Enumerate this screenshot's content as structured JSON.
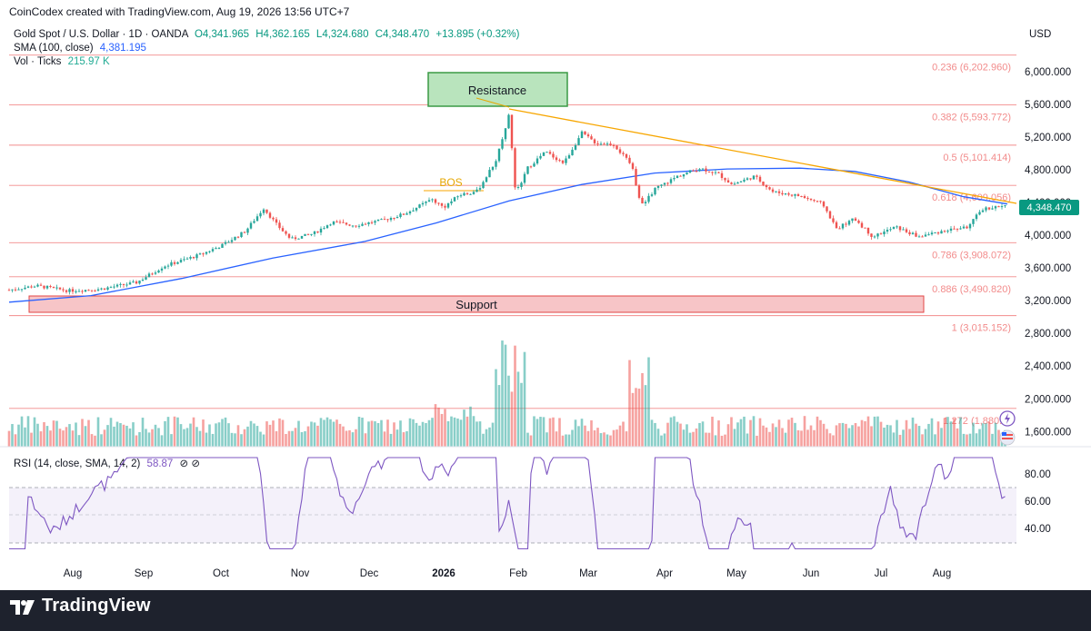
{
  "credit": "CoinCodex created with TradingView.com, Aug 19, 2026 13:56 UTC+7",
  "legend": {
    "symbol": "Gold Spot / U.S. Dollar · 1D · OANDA",
    "open": "O4,341.965",
    "high": "H4,362.165",
    "low": "L4,324.680",
    "close": "C4,348.470",
    "change": "+13.895 (+0.32%)",
    "sma_label": "SMA (100, close)",
    "sma_value": "4,381.195",
    "vol_label": "Vol · Ticks",
    "vol_value": "215.97 K",
    "rsi_label": "RSI (14, close, SMA, 14, 2)",
    "rsi_value": "58.87",
    "rsi_extra": "⊘ ⊘"
  },
  "currency": "USD",
  "brand": "TradingView",
  "colors": {
    "up": "#26a69a",
    "down": "#ef5350",
    "sma": "#2962ff",
    "trendline": "#f7a600",
    "fib": "#f28b8b",
    "rsi": "#7e57c2"
  },
  "chart_data": {
    "type": "candlestick",
    "price_axis": {
      "ticks": [
        "6,000.000",
        "5,600.000",
        "5,200.000",
        "4,800.000",
        "4,400.000",
        "4,000.000",
        "3,600.000",
        "3,200.000",
        "2,800.000",
        "2,400.000",
        "2,000.000",
        "1,600.000"
      ],
      "range": [
        1390,
        6460
      ]
    },
    "last_price_label": "4,348.470",
    "x_axis_labels": [
      "Aug",
      "Sep",
      "Oct",
      "Nov",
      "Dec",
      "2026",
      "Feb",
      "Mar",
      "Apr",
      "May",
      "Jun",
      "Jul",
      "Aug"
    ],
    "annotations": {
      "resistance": "Resistance",
      "support": "Support",
      "bos": "BOS"
    },
    "fib_levels": [
      {
        "label": "0.236 (6,202.960)",
        "price": 6202.96
      },
      {
        "label": "0.382 (5,593.772)",
        "price": 5593.772
      },
      {
        "label": "0.5 (5,101.414)",
        "price": 5101.414
      },
      {
        "label": "0.618 (4,609.056)",
        "price": 4609.056
      },
      {
        "label": "0.786 (3,908.072)",
        "price": 3908.072
      },
      {
        "label": "0.886 (3,490.820)",
        "price": 3490.82
      },
      {
        "label": "1 (3,015.152)",
        "price": 3015.152
      },
      {
        "label": "1.272 (1,880.2)",
        "price": 1880.2
      }
    ],
    "price_path": [
      {
        "month": "Jul",
        "price": 3330
      },
      {
        "month": "Aug",
        "price": 3360
      },
      {
        "month": "Sep",
        "price": 3580
      },
      {
        "month": "Sep-end",
        "price": 3840
      },
      {
        "month": "Oct-mid",
        "price": 4300
      },
      {
        "month": "Oct-end",
        "price": 4000
      },
      {
        "month": "Nov",
        "price": 4050
      },
      {
        "month": "Dec",
        "price": 4200
      },
      {
        "month": "Dec-end",
        "price": 4480
      },
      {
        "month": "2026",
        "price": 4500
      },
      {
        "month": "Jan-late",
        "price": 5500
      },
      {
        "month": "Feb",
        "price": 4800
      },
      {
        "month": "Feb-mid",
        "price": 5050
      },
      {
        "month": "Mar",
        "price": 5300
      },
      {
        "month": "Mar-late",
        "price": 4500
      },
      {
        "month": "Apr",
        "price": 4650
      },
      {
        "month": "Apr-mid",
        "price": 4850
      },
      {
        "month": "May",
        "price": 4700
      },
      {
        "month": "Jun",
        "price": 4400
      },
      {
        "month": "Jun-mid",
        "price": 3980
      },
      {
        "month": "Jul",
        "price": 4100
      },
      {
        "month": "Aug",
        "price": 4350
      }
    ],
    "rsi_axis": {
      "ticks": [
        "80.00",
        "60.00",
        "40.00"
      ],
      "bands": [
        70,
        30
      ]
    },
    "volume_axis_ticks": [
      "2,800.000",
      "2,400.000",
      "2,000.000",
      "1,600.000"
    ]
  }
}
